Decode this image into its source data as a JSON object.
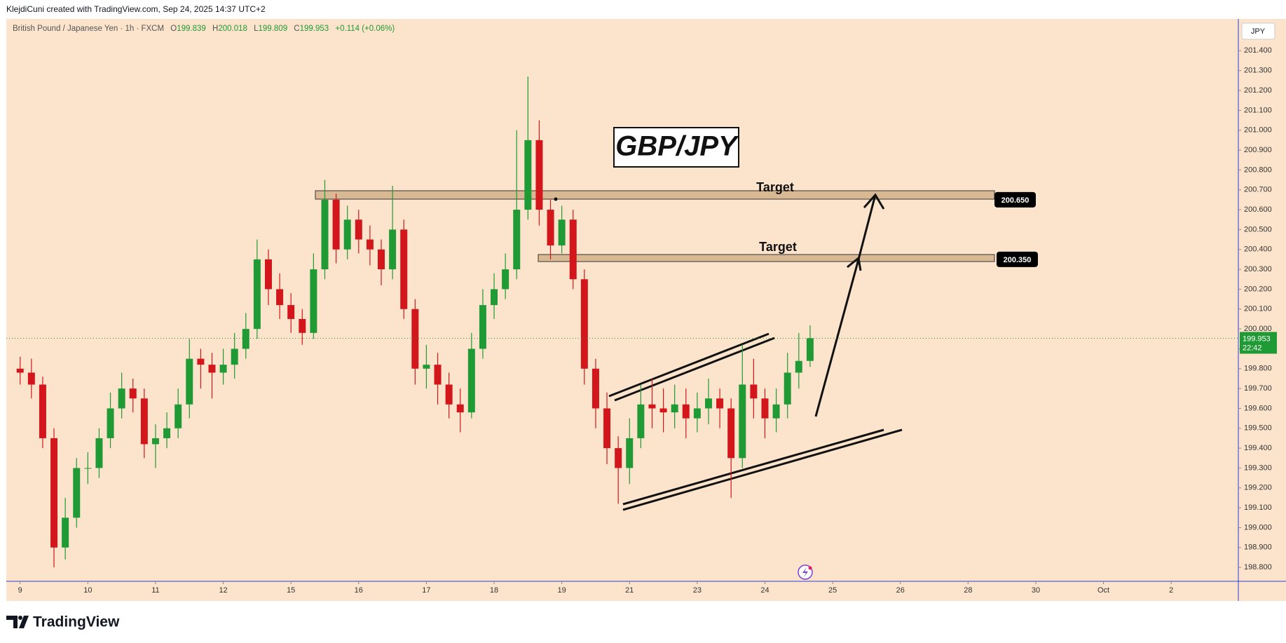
{
  "header": {
    "credit": "KlejdiCuni created with TradingView.com, Sep 24, 2025 14:37 UTC+2"
  },
  "chart_data": {
    "type": "candlestick",
    "symbol": "British Pound / Japanese Yen · 1h · FXCM",
    "legend": {
      "o": "O",
      "h": "H",
      "l": "L",
      "c": "C",
      "change": "+0.114 (+0.06%)"
    },
    "currency": "JPY",
    "annotation": "GBP/JPY",
    "countdown": "22:42",
    "up_color": "#1f9a35",
    "down_color": "#d2161b",
    "targets": [
      {
        "label": "Target",
        "price": {
          "value": 200.65,
          "label": "200.650"
        }
      },
      {
        "label": "Target",
        "price": {
          "value": 200.35,
          "label": "200.350"
        }
      }
    ],
    "x": [
      0,
      4,
      8,
      12,
      16,
      20,
      24,
      28,
      32,
      36,
      40,
      44,
      48,
      52,
      56,
      60,
      64,
      68,
      72,
      76,
      80,
      84,
      88,
      92,
      96,
      100,
      104,
      108,
      112,
      116,
      120,
      124,
      128,
      132,
      136,
      140,
      144,
      148,
      152,
      156,
      160,
      164,
      168,
      172,
      176,
      180,
      184,
      188,
      192,
      196,
      200,
      204,
      208,
      212,
      216,
      220,
      224,
      228,
      232,
      236,
      240,
      244,
      248,
      252,
      256,
      260,
      264,
      268,
      272,
      276,
      280
    ],
    "open": [
      199.8,
      199.78,
      199.72,
      199.45,
      198.9,
      199.05,
      199.3,
      199.3,
      199.45,
      199.6,
      199.7,
      199.65,
      199.42,
      199.45,
      199.5,
      199.62,
      199.85,
      199.82,
      199.78,
      199.82,
      199.9,
      200.0,
      200.35,
      200.2,
      200.12,
      200.05,
      199.98,
      200.3,
      200.65,
      200.4,
      200.55,
      200.45,
      200.4,
      200.3,
      200.5,
      200.1,
      199.8,
      199.82,
      199.72,
      199.62,
      199.58,
      199.9,
      200.12,
      200.2,
      200.3,
      200.6,
      200.95,
      200.6,
      200.42,
      200.55,
      200.25,
      199.8,
      199.6,
      199.4,
      199.3,
      199.45,
      199.62,
      199.6,
      199.58,
      199.62,
      199.55,
      199.6,
      199.65,
      199.6,
      199.35,
      199.72,
      199.65,
      199.55,
      199.62,
      199.78,
      199.839
    ],
    "high": [
      199.86,
      199.85,
      199.76,
      199.5,
      199.15,
      199.35,
      199.38,
      199.5,
      199.68,
      199.78,
      199.75,
      199.7,
      199.52,
      199.58,
      199.7,
      199.95,
      199.9,
      199.88,
      199.9,
      199.98,
      200.08,
      200.45,
      200.4,
      200.28,
      200.18,
      200.1,
      200.38,
      200.75,
      200.68,
      200.62,
      200.6,
      200.52,
      200.45,
      200.72,
      200.55,
      200.15,
      199.92,
      199.88,
      199.78,
      199.7,
      199.98,
      200.2,
      200.28,
      200.38,
      201.0,
      201.27,
      201.05,
      200.65,
      200.62,
      200.6,
      200.3,
      199.85,
      199.68,
      199.46,
      199.55,
      199.72,
      199.75,
      199.7,
      199.72,
      199.7,
      199.68,
      199.75,
      199.7,
      199.65,
      199.92,
      199.85,
      199.7,
      199.7,
      199.88,
      199.98,
      200.018
    ],
    "low": [
      199.72,
      199.65,
      199.4,
      198.8,
      198.84,
      199.0,
      199.22,
      199.25,
      199.4,
      199.55,
      199.58,
      199.35,
      199.3,
      199.4,
      199.45,
      199.55,
      199.7,
      199.65,
      199.72,
      199.75,
      199.85,
      199.95,
      200.12,
      200.05,
      199.98,
      199.92,
      199.95,
      200.25,
      200.33,
      200.35,
      200.38,
      200.32,
      200.22,
      200.25,
      200.05,
      199.72,
      199.7,
      199.62,
      199.55,
      199.48,
      199.55,
      199.85,
      200.05,
      200.15,
      200.25,
      200.55,
      200.52,
      200.35,
      200.38,
      200.2,
      199.72,
      199.5,
      199.32,
      199.12,
      199.22,
      199.4,
      199.5,
      199.48,
      199.5,
      199.45,
      199.48,
      199.52,
      199.5,
      199.15,
      199.3,
      199.55,
      199.45,
      199.48,
      199.55,
      199.7,
      199.809
    ],
    "close": [
      199.78,
      199.72,
      199.45,
      198.9,
      199.05,
      199.3,
      199.3,
      199.45,
      199.6,
      199.7,
      199.65,
      199.42,
      199.45,
      199.5,
      199.62,
      199.85,
      199.82,
      199.78,
      199.82,
      199.9,
      200.0,
      200.35,
      200.2,
      200.12,
      200.05,
      199.98,
      200.3,
      200.65,
      200.4,
      200.55,
      200.45,
      200.4,
      200.3,
      200.5,
      200.1,
      199.8,
      199.82,
      199.72,
      199.62,
      199.58,
      199.9,
      200.12,
      200.2,
      200.3,
      200.6,
      200.95,
      200.6,
      200.42,
      200.55,
      200.25,
      199.8,
      199.6,
      199.4,
      199.3,
      199.45,
      199.62,
      199.6,
      199.58,
      199.62,
      199.55,
      199.6,
      199.65,
      199.6,
      199.35,
      199.72,
      199.65,
      199.55,
      199.62,
      199.78,
      199.839,
      199.953
    ],
    "xlim": [
      -4.9,
      431.8
    ],
    "xticks": [
      {
        "value": 0,
        "label": "9"
      },
      {
        "value": 24,
        "label": "10"
      },
      {
        "value": 48,
        "label": "11"
      },
      {
        "value": 72,
        "label": "12"
      },
      {
        "value": 96,
        "label": "15"
      },
      {
        "value": 120,
        "label": "16"
      },
      {
        "value": 144,
        "label": "17"
      },
      {
        "value": 168,
        "label": "18"
      },
      {
        "value": 192,
        "label": "19"
      },
      {
        "value": 216,
        "label": "21"
      },
      {
        "value": 240,
        "label": "23"
      },
      {
        "value": 264,
        "label": "24"
      },
      {
        "value": 288,
        "label": "25"
      },
      {
        "value": 312,
        "label": "26"
      },
      {
        "value": 336,
        "label": "28"
      },
      {
        "value": 360,
        "label": "30"
      },
      {
        "value": 384,
        "label": "Oct"
      },
      {
        "value": 408,
        "label": "2"
      }
    ],
    "ylim": [
      198.73,
      201.56
    ],
    "yticks": [
      {
        "value": 198.8,
        "label": "198.800"
      },
      {
        "value": 198.9,
        "label": "198.900"
      },
      {
        "value": 199.0,
        "label": "199.000"
      },
      {
        "value": 199.1,
        "label": "199.100"
      },
      {
        "value": 199.2,
        "label": "199.200"
      },
      {
        "value": 199.3,
        "label": "199.300"
      },
      {
        "value": 199.4,
        "label": "199.400"
      },
      {
        "value": 199.5,
        "label": "199.500"
      },
      {
        "value": 199.6,
        "label": "199.600"
      },
      {
        "value": 199.7,
        "label": "199.700"
      },
      {
        "value": 199.8,
        "label": "199.800"
      },
      {
        "value": 199.9,
        "label": "199.900"
      },
      {
        "value": 200.0,
        "label": "200.000"
      },
      {
        "value": 200.1,
        "label": "200.100"
      },
      {
        "value": 200.2,
        "label": "200.200"
      },
      {
        "value": 200.3,
        "label": "200.300"
      },
      {
        "value": 200.4,
        "label": "200.400"
      },
      {
        "value": 200.5,
        "label": "200.500"
      },
      {
        "value": 200.6,
        "label": "200.600"
      },
      {
        "value": 200.7,
        "label": "200.700"
      },
      {
        "value": 200.8,
        "label": "200.800"
      },
      {
        "value": 200.9,
        "label": "200.900"
      },
      {
        "value": 201.0,
        "label": "201.000"
      },
      {
        "value": 201.1,
        "label": "201.100"
      },
      {
        "value": 201.2,
        "label": "201.200"
      },
      {
        "value": 201.3,
        "label": "201.300"
      },
      {
        "value": 201.4,
        "label": "201.400"
      }
    ]
  },
  "footer": {
    "brand": "TradingView"
  }
}
